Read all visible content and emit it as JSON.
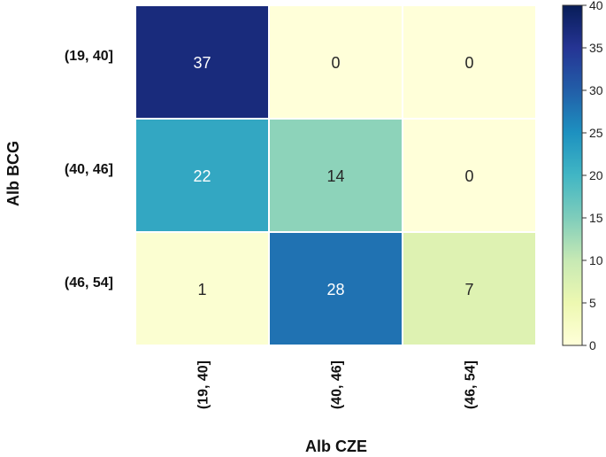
{
  "chart_data": {
    "type": "heatmap",
    "xlabel": "Alb CZE",
    "ylabel": "Alb BCG",
    "x_categories": [
      "(19, 40]",
      "(40, 46]",
      "(46, 54]"
    ],
    "y_categories": [
      "(19, 40]",
      "(40, 46]",
      "(46, 54]"
    ],
    "values": [
      [
        37,
        0,
        0
      ],
      [
        22,
        14,
        0
      ],
      [
        1,
        28,
        7
      ]
    ],
    "colorbar": {
      "range": [
        0,
        40
      ],
      "ticks": [
        "0",
        "5",
        "10",
        "15",
        "20",
        "25",
        "30",
        "35",
        "40"
      ],
      "colormap": "YlGnBu",
      "stops": [
        "#ffffd9",
        "#edf8b1",
        "#c7e9b4",
        "#7fcdbb",
        "#41b6c4",
        "#1d91c0",
        "#225ea8",
        "#253494",
        "#081d58"
      ]
    },
    "grid": false,
    "cell_annotations": true
  }
}
